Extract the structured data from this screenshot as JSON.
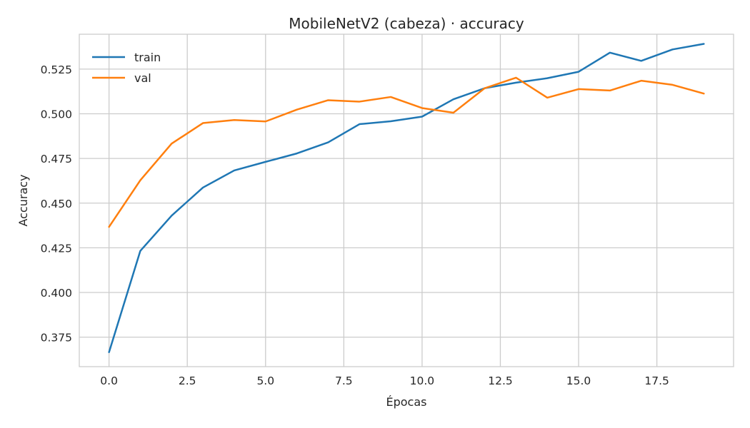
{
  "chart_data": {
    "type": "line",
    "title": "MobileNetV2 (cabeza) · accuracy",
    "xlabel": "Épocas",
    "ylabel": "Accuracy",
    "xlim": [
      -0.95,
      19.95
    ],
    "ylim": [
      0.3585,
      0.5445
    ],
    "xticks": [
      0.0,
      2.5,
      5.0,
      7.5,
      10.0,
      12.5,
      15.0,
      17.5
    ],
    "xtick_labels": [
      "0.0",
      "2.5",
      "5.0",
      "7.5",
      "10.0",
      "12.5",
      "15.0",
      "17.5"
    ],
    "yticks": [
      0.375,
      0.4,
      0.425,
      0.45,
      0.475,
      0.5,
      0.525
    ],
    "ytick_labels": [
      "0.375",
      "0.400",
      "0.425",
      "0.450",
      "0.475",
      "0.500",
      "0.525"
    ],
    "grid": true,
    "legend_position": "top-left",
    "x": [
      0,
      1,
      2,
      3,
      4,
      5,
      6,
      7,
      8,
      9,
      10,
      11,
      12,
      13,
      14,
      15,
      16,
      17,
      18,
      19
    ],
    "series": [
      {
        "name": "train",
        "color": "#1f77b4",
        "values": [
          0.3666,
          0.4233,
          0.443,
          0.4587,
          0.4683,
          0.4731,
          0.4778,
          0.484,
          0.4942,
          0.4958,
          0.4984,
          0.5081,
          0.5143,
          0.5174,
          0.5199,
          0.5235,
          0.5342,
          0.5296,
          0.536,
          0.5391
        ]
      },
      {
        "name": "val",
        "color": "#ff7f0e",
        "values": [
          0.4367,
          0.4628,
          0.4833,
          0.4948,
          0.4965,
          0.4957,
          0.5023,
          0.5076,
          0.5068,
          0.5094,
          0.5032,
          0.5006,
          0.5143,
          0.5202,
          0.509,
          0.5138,
          0.513,
          0.5185,
          0.5162,
          0.5113
        ]
      }
    ]
  }
}
